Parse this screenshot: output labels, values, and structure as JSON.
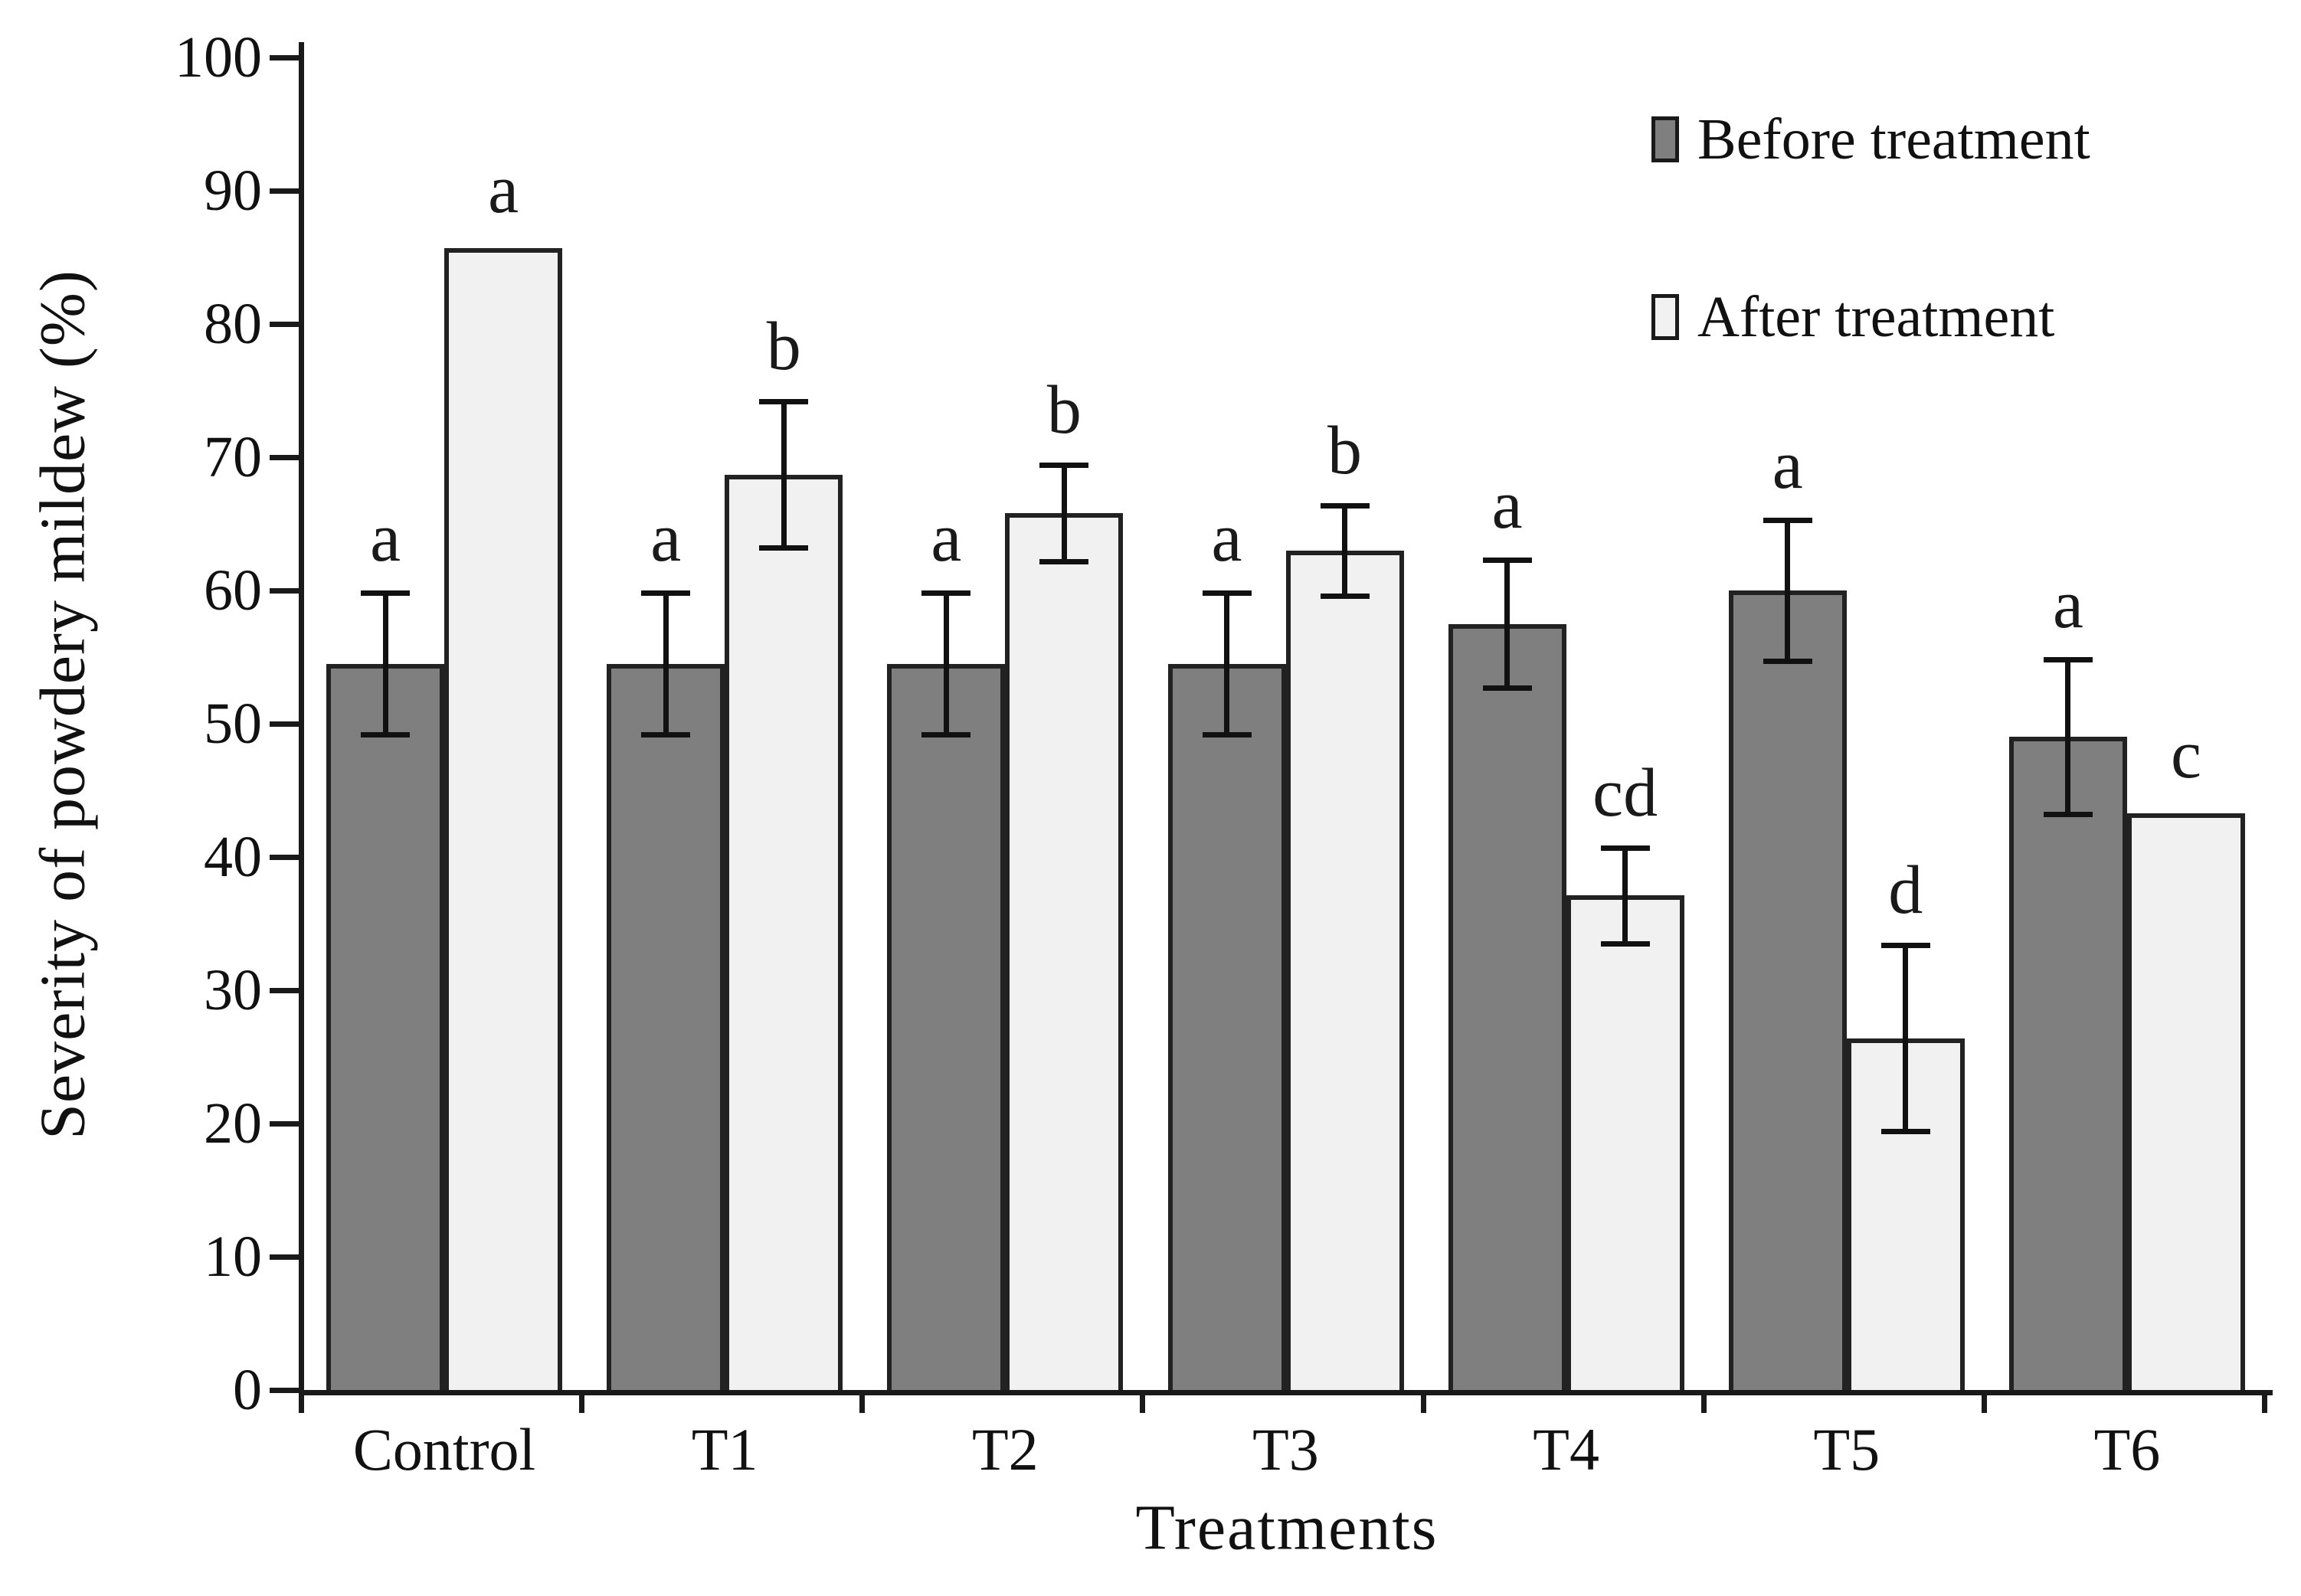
{
  "figure": {
    "background": "#ffffff",
    "text_color": "#1a1a1a"
  },
  "chart_data": {
    "type": "bar",
    "title": "",
    "xlabel": "Treatments",
    "ylabel": "Severity of powdery mildew (%)",
    "ylim": [
      0,
      100
    ],
    "ytick_step": 10,
    "grid": false,
    "legend_position": "top-right",
    "categories": [
      "Control",
      "T1",
      "T2",
      "T3",
      "T4",
      "T5",
      "T6"
    ],
    "series": [
      {
        "name": "Before treatment",
        "color": "#7f7f7f",
        "values": [
          54.5,
          54.5,
          54.5,
          54.5,
          57.5,
          60,
          49
        ],
        "errors": [
          5.3,
          5.3,
          5.3,
          5.3,
          4.8,
          5.3,
          5.8
        ],
        "letters": [
          "a",
          "a",
          "a",
          "a",
          "a",
          "a",
          "a"
        ]
      },
      {
        "name": "After treatment",
        "color": "#f1f1f1",
        "values": [
          85.7,
          68.7,
          65.8,
          63,
          37.1,
          26.4,
          43.3
        ],
        "errors": [
          0,
          5.5,
          3.6,
          3.4,
          3.6,
          7,
          0
        ],
        "letters": [
          "a",
          "b",
          "b",
          "b",
          "cd",
          "d",
          "c"
        ]
      }
    ]
  }
}
